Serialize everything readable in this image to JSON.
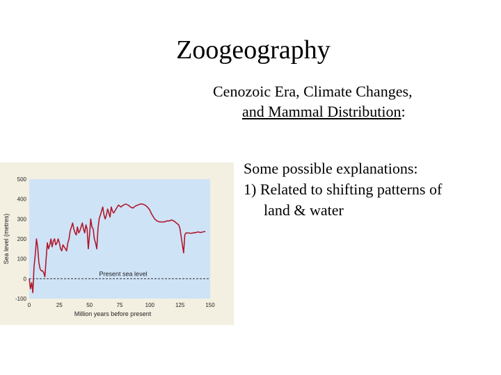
{
  "slide": {
    "title": "Zoogeography",
    "subtitle_line1": "Cenozoic Era, Climate Changes,",
    "subtitle_line2_underlined": "and Mammal Distribution",
    "subtitle_line2_suffix": ":",
    "bullets": [
      "Some possible explanations:",
      "1) Related to shifting patterns of",
      "land & water"
    ]
  },
  "chart_data": {
    "type": "line",
    "xlabel": "Million years before present",
    "ylabel": "Sea level (metres)",
    "xlim": [
      0,
      150
    ],
    "ylim": [
      -100,
      500
    ],
    "x_ticks": [
      0,
      25,
      50,
      75,
      100,
      125,
      150
    ],
    "y_ticks": [
      -100,
      0,
      100,
      200,
      300,
      400,
      500
    ],
    "grid": false,
    "plot_background": "#cfe3f7",
    "series_color": "#b0182a",
    "reference_line": {
      "y": 0,
      "label": "Present sea level",
      "style": "dashed"
    },
    "series": [
      {
        "x": [
          0,
          1,
          2,
          3,
          4,
          5,
          6,
          7,
          8,
          9,
          10,
          11,
          12,
          13,
          14,
          15,
          16,
          17,
          18,
          19,
          20,
          21,
          22,
          23,
          24,
          25,
          26,
          27,
          28,
          29,
          30,
          31,
          32,
          33,
          34,
          35,
          36,
          37,
          38,
          39,
          40,
          41,
          42,
          43,
          44,
          45,
          46,
          47,
          48,
          49,
          50,
          51,
          52,
          53,
          54,
          55,
          56,
          57,
          58,
          59,
          60,
          61,
          62,
          63,
          64,
          65,
          66,
          67,
          68,
          69,
          70,
          72,
          74,
          76,
          78,
          80,
          82,
          84,
          86,
          88,
          90,
          92,
          94,
          96,
          98,
          100,
          101,
          102,
          103,
          104,
          105,
          106,
          107,
          108,
          110,
          112,
          114,
          116,
          118,
          120,
          122,
          124,
          125,
          126,
          127,
          128,
          129,
          130,
          131,
          132,
          134,
          136,
          138,
          140,
          142,
          144,
          146
        ],
        "values": [
          0,
          -50,
          -20,
          -70,
          60,
          120,
          200,
          160,
          80,
          50,
          40,
          40,
          30,
          10,
          100,
          180,
          150,
          170,
          200,
          160,
          190,
          200,
          170,
          180,
          200,
          180,
          150,
          140,
          170,
          160,
          150,
          140,
          180,
          200,
          240,
          260,
          280,
          250,
          230,
          220,
          260,
          230,
          240,
          260,
          280,
          250,
          230,
          270,
          250,
          150,
          220,
          300,
          260,
          250,
          200,
          180,
          150,
          250,
          300,
          320,
          340,
          360,
          320,
          300,
          320,
          350,
          330,
          310,
          360,
          340,
          330,
          350,
          370,
          360,
          370,
          375,
          370,
          360,
          355,
          365,
          370,
          375,
          375,
          370,
          360,
          345,
          330,
          320,
          310,
          300,
          295,
          290,
          288,
          285,
          285,
          285,
          290,
          290,
          295,
          290,
          280,
          270,
          250,
          210,
          170,
          130,
          220,
          230,
          230,
          230,
          228,
          230,
          232,
          235,
          232,
          235,
          238
        ]
      }
    ]
  }
}
